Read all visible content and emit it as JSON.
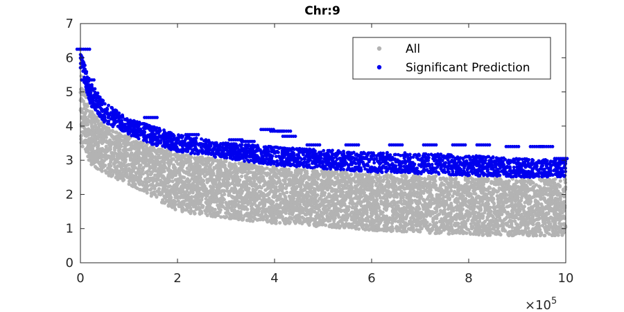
{
  "chart_data": {
    "type": "scatter",
    "title": "Chr:9",
    "xlabel": "",
    "ylabel": "",
    "xlim": [
      0,
      1000000
    ],
    "ylim": [
      0,
      7
    ],
    "x_ticks": [
      "0",
      "2",
      "4",
      "6",
      "8",
      "10"
    ],
    "y_ticks": [
      "0",
      "1",
      "2",
      "3",
      "4",
      "5",
      "6",
      "7"
    ],
    "x_exponent_label": "×10",
    "x_exponent_power": "5",
    "grid": false,
    "legend_position": "top-right",
    "series": [
      {
        "name": "All",
        "color": "#b3b3b3",
        "lower_envelope": [
          [
            0,
            3.5
          ],
          [
            20000,
            2.9
          ],
          [
            50000,
            2.6
          ],
          [
            100000,
            2.3
          ],
          [
            150000,
            1.9
          ],
          [
            200000,
            1.5
          ],
          [
            300000,
            1.3
          ],
          [
            400000,
            1.15
          ],
          [
            500000,
            1.05
          ],
          [
            600000,
            0.95
          ],
          [
            700000,
            0.88
          ],
          [
            800000,
            0.82
          ],
          [
            900000,
            0.78
          ],
          [
            1000000,
            0.8
          ]
        ],
        "upper_envelope": [
          [
            0,
            5.6
          ],
          [
            20000,
            4.5
          ],
          [
            50000,
            4.0
          ],
          [
            100000,
            3.7
          ],
          [
            150000,
            3.4
          ],
          [
            200000,
            3.2
          ],
          [
            300000,
            3.0
          ],
          [
            400000,
            2.8
          ],
          [
            500000,
            2.7
          ],
          [
            600000,
            2.6
          ],
          [
            700000,
            2.55
          ],
          [
            800000,
            2.5
          ],
          [
            900000,
            2.45
          ],
          [
            1000000,
            2.45
          ]
        ]
      },
      {
        "name": "Significant Prediction",
        "color": "#0000ee",
        "lower_envelope": [
          [
            0,
            5.7
          ],
          [
            20000,
            4.6
          ],
          [
            50000,
            4.1
          ],
          [
            100000,
            3.75
          ],
          [
            150000,
            3.45
          ],
          [
            200000,
            3.25
          ],
          [
            300000,
            3.05
          ],
          [
            400000,
            2.85
          ],
          [
            500000,
            2.75
          ],
          [
            600000,
            2.65
          ],
          [
            700000,
            2.6
          ],
          [
            800000,
            2.55
          ],
          [
            900000,
            2.5
          ],
          [
            1000000,
            2.5
          ]
        ],
        "upper_envelope": [
          [
            0,
            6.2
          ],
          [
            20000,
            5.3
          ],
          [
            50000,
            4.7
          ],
          [
            100000,
            4.2
          ],
          [
            150000,
            4.0
          ],
          [
            200000,
            3.75
          ],
          [
            300000,
            3.5
          ],
          [
            400000,
            3.4
          ],
          [
            500000,
            3.3
          ],
          [
            600000,
            3.25
          ],
          [
            700000,
            3.2
          ],
          [
            800000,
            3.15
          ],
          [
            900000,
            3.05
          ],
          [
            1000000,
            3.0
          ]
        ],
        "outliers": [
          [
            6000,
            6.25
          ],
          [
            15000,
            5.35
          ],
          [
            145000,
            4.25
          ],
          [
            230000,
            3.75
          ],
          [
            320000,
            3.6
          ],
          [
            345000,
            3.55
          ],
          [
            385000,
            3.9
          ],
          [
            405000,
            3.85
          ],
          [
            420000,
            3.85
          ],
          [
            430000,
            3.7
          ],
          [
            480000,
            3.45
          ],
          [
            560000,
            3.45
          ],
          [
            650000,
            3.45
          ],
          [
            720000,
            3.45
          ],
          [
            780000,
            3.45
          ],
          [
            830000,
            3.45
          ],
          [
            890000,
            3.4
          ],
          [
            940000,
            3.4
          ],
          [
            960000,
            3.4
          ],
          [
            990000,
            3.05
          ]
        ]
      }
    ]
  }
}
